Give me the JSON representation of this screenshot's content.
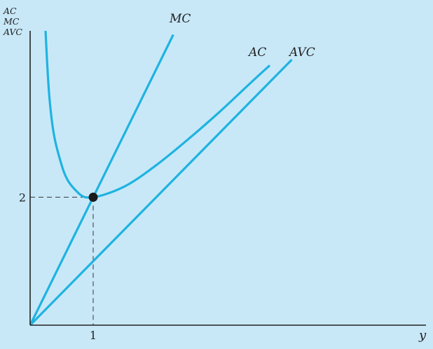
{
  "chart_data": {
    "type": "line",
    "title": "",
    "xlabel": "y",
    "ylabel_lines": [
      "AC",
      "MC",
      "AVC"
    ],
    "x_ticks": [
      "1"
    ],
    "y_ticks": [
      "2"
    ],
    "xlim": [
      0,
      6.2
    ],
    "ylim": [
      0,
      4.6
    ],
    "grid": false,
    "marker": {
      "x": 1,
      "y": 2
    },
    "series": [
      {
        "name": "MC",
        "x": [
          0,
          2.27
        ],
        "y": [
          0,
          4.54
        ]
      },
      {
        "name": "AC",
        "x": [
          0.15,
          0.3,
          0.5,
          0.75,
          1,
          1.5,
          2,
          2.5,
          3,
          3.5,
          3.8
        ],
        "y": [
          6.82,
          3.63,
          2.5,
          2.08,
          2,
          2.17,
          2.5,
          2.9,
          3.33,
          3.79,
          4.06
        ]
      },
      {
        "name": "AVC",
        "x": [
          0,
          4.15
        ],
        "y": [
          0,
          4.15
        ]
      }
    ]
  }
}
